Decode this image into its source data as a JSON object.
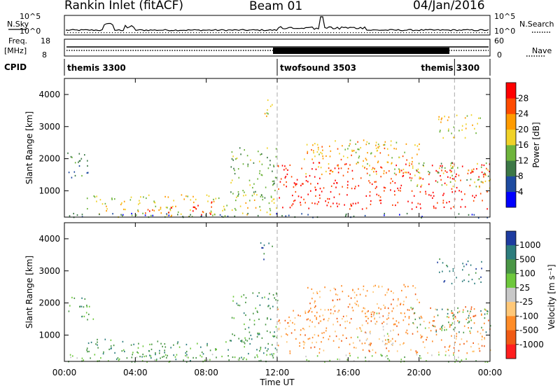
{
  "header": {
    "station": "Rankin Inlet (fitACF)",
    "beam": "Beam 01",
    "date": "04/Jan/2016"
  },
  "top_panels": {
    "nsky_label": "N.Sky",
    "nsky_ticks": [
      "10^5",
      "10^0"
    ],
    "nsearch_label": "N.Search",
    "nsearch_ticks": [
      "10^5",
      "10^0"
    ],
    "freq_label_1": "Freq.",
    "freq_label_2": "[MHz]",
    "freq_ticks": [
      "18",
      "8"
    ],
    "nave_label": "Nave",
    "nave_ticks": [
      "60",
      "0"
    ],
    "cpid_label": "CPID",
    "cpid_segments": [
      {
        "label": "themis 3300",
        "start_h": 0,
        "end_h": 12
      },
      {
        "label": "twofsound 3503",
        "start_h": 12,
        "end_h": 22
      },
      {
        "label": "themis 3300",
        "start_h": 22,
        "end_h": 24
      }
    ]
  },
  "chart_data": [
    {
      "type": "heatmap",
      "title": "",
      "xlabel": "Time UT",
      "ylabel": "Slant Range [km]",
      "xlim": [
        0,
        24
      ],
      "ylim": [
        180,
        4500
      ],
      "x_ticks": [
        "00:00",
        "04:00",
        "08:00",
        "12:00",
        "16:00",
        "20:00",
        "00:00"
      ],
      "y_ticks": [
        "1000",
        "2000",
        "3000",
        "4000"
      ],
      "colorbar": {
        "label": "Power [dB]",
        "ticks": [
          "28",
          "24",
          "20",
          "16",
          "12",
          "8",
          "4"
        ],
        "colors": [
          "#0000ff",
          "#1e4ba0",
          "#3c7846",
          "#6eb43c",
          "#f0d228",
          "#ff9b00",
          "#ff4b00",
          "#ff0000"
        ],
        "bounds": [
          0,
          4,
          8,
          12,
          16,
          20,
          24,
          28,
          32
        ]
      },
      "echo_regions": [
        {
          "t0": 0.1,
          "t1": 1.6,
          "r0": 1400,
          "r1": 2200,
          "value": 10
        },
        {
          "t0": 1.2,
          "t1": 12.0,
          "r0": 200,
          "r1": 900,
          "value": 18
        },
        {
          "t0": 4.5,
          "t1": 6.2,
          "r0": 250,
          "r1": 600,
          "value": 27
        },
        {
          "t0": 7.2,
          "t1": 9.0,
          "r0": 250,
          "r1": 700,
          "value": 29
        },
        {
          "t0": 9.3,
          "t1": 12.0,
          "r0": 800,
          "r1": 2400,
          "value": 14
        },
        {
          "t0": 11.0,
          "t1": 11.8,
          "r0": 3300,
          "r1": 3900,
          "value": 17
        },
        {
          "t0": 12.0,
          "t1": 24.0,
          "r0": 450,
          "r1": 1900,
          "value": 30
        },
        {
          "t0": 13.5,
          "t1": 20.0,
          "r0": 1500,
          "r1": 2600,
          "value": 21
        },
        {
          "t0": 16.0,
          "t1": 18.5,
          "r0": 2000,
          "r1": 2600,
          "value": 19
        },
        {
          "t0": 19.5,
          "t1": 24.0,
          "r0": 1100,
          "r1": 1900,
          "value": 16
        },
        {
          "t0": 21.0,
          "t1": 23.5,
          "r0": 2600,
          "r1": 3400,
          "value": 18
        },
        {
          "t0": 0.1,
          "t1": 24.0,
          "r0": 180,
          "r1": 320,
          "value": 8
        }
      ],
      "markers_h": [
        12,
        22
      ]
    },
    {
      "type": "heatmap",
      "title": "",
      "xlabel": "Time UT",
      "ylabel": "Slant Range [km]",
      "xlim": [
        0,
        24
      ],
      "ylim": [
        180,
        4500
      ],
      "x_ticks": [
        "00:00",
        "04:00",
        "08:00",
        "12:00",
        "16:00",
        "20:00",
        "00:00"
      ],
      "y_ticks": [
        "1000",
        "2000",
        "3000",
        "4000"
      ],
      "colorbar": {
        "label": "Velocity [m s⁻¹]",
        "ticks": [
          "1000",
          "500",
          "100",
          "25",
          "-25",
          "-100",
          "-500",
          "-1000"
        ],
        "colors": [
          "#1e3ca0",
          "#2d7d7d",
          "#4a9646",
          "#6ec83c",
          "#c8c8c8",
          "#ffc878",
          "#ff8c28",
          "#f05a14",
          "#ff1e1e"
        ]
      },
      "echo_regions": [
        {
          "t0": 0.1,
          "t1": 1.6,
          "r0": 1400,
          "r1": 2200,
          "level": 2
        },
        {
          "t0": 1.2,
          "t1": 12.0,
          "r0": 200,
          "r1": 900,
          "level": 2
        },
        {
          "t0": 4.5,
          "t1": 6.2,
          "r0": 250,
          "r1": 600,
          "level": 1
        },
        {
          "t0": 9.3,
          "t1": 12.0,
          "r0": 800,
          "r1": 2400,
          "level": 2
        },
        {
          "t0": 11.0,
          "t1": 11.8,
          "r0": 3300,
          "r1": 3900,
          "level": 1
        },
        {
          "t0": 12.0,
          "t1": 24.0,
          "r0": 450,
          "r1": 1900,
          "level": 6
        },
        {
          "t0": 13.5,
          "t1": 20.0,
          "r0": 1500,
          "r1": 2600,
          "level": 6
        },
        {
          "t0": 16.5,
          "t1": 18.5,
          "r0": 700,
          "r1": 1700,
          "level": 4
        },
        {
          "t0": 19.5,
          "t1": 24.0,
          "r0": 1100,
          "r1": 1900,
          "level": 2
        },
        {
          "t0": 21.0,
          "t1": 23.5,
          "r0": 2600,
          "r1": 3400,
          "level": 1
        },
        {
          "t0": 0.1,
          "t1": 24.0,
          "r0": 180,
          "r1": 420,
          "level": 3
        }
      ],
      "markers_h": [
        12,
        22
      ]
    }
  ]
}
